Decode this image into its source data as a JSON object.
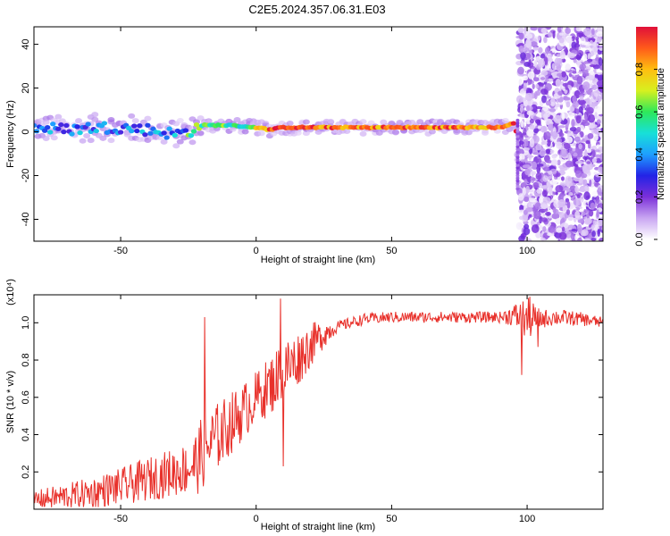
{
  "title": "C2E5.2024.357.06.31.E03",
  "colors": {
    "snr_line": "#e8302a",
    "colormap": [
      "#ffffff",
      "#c9a6f2",
      "#7b2fd9",
      "#2323e6",
      "#1e9fff",
      "#17e0d8",
      "#2ee85a",
      "#d7f01f",
      "#ffbe10",
      "#ff5a1a",
      "#e0103a"
    ]
  },
  "chart_data": [
    {
      "type": "heatmap",
      "xlabel": "Height of straight line (km)",
      "ylabel": "Frequency (Hz)",
      "xlim": [
        -82,
        128
      ],
      "ylim": [
        -50,
        48
      ],
      "xticks": [
        -50,
        0,
        50,
        100
      ],
      "yticks": [
        -40,
        -20,
        0,
        20,
        40
      ],
      "colorbar": {
        "label": "Normalized spectral amplitude",
        "range": [
          0.0,
          1.0
        ],
        "ticks": [
          "0.0",
          "0.2",
          "0.4",
          "0.6",
          "0.8"
        ],
        "tick_values": [
          0.0,
          0.2,
          0.4,
          0.6,
          0.8
        ]
      },
      "signal_line": {
        "x": [
          -82,
          -70,
          -60,
          -50,
          -40,
          -30,
          -25,
          -20,
          -10,
          0,
          5,
          10,
          20,
          40,
          60,
          80,
          90,
          95,
          96,
          97
        ],
        "y": [
          2,
          1,
          2,
          2,
          1,
          -1,
          0,
          3,
          3,
          2,
          1,
          2,
          2,
          2,
          2,
          2,
          2,
          4,
          0,
          -20
        ]
      },
      "noise_region_x": [
        97,
        128
      ]
    },
    {
      "type": "line",
      "xlabel": "Height of straight line (km)",
      "ylabel": "SNR (10 * v/v)",
      "y_exponent_label": "(x10⁴)",
      "xlim": [
        -82,
        128
      ],
      "ylim": [
        0,
        1.15
      ],
      "xticks": [
        -50,
        0,
        50,
        100
      ],
      "yticks": [
        0.2,
        0.4,
        0.6,
        0.8,
        1.0
      ],
      "ytick_labels": [
        "0.2",
        "0.4",
        "0.6",
        "0.8",
        "1.0"
      ],
      "trend": {
        "x": [
          -82,
          -70,
          -60,
          -50,
          -40,
          -30,
          -25,
          -22,
          -20,
          -15,
          -10,
          -5,
          0,
          5,
          10,
          15,
          20,
          25,
          30,
          40,
          50,
          60,
          70,
          80,
          90,
          95,
          100,
          105,
          110,
          120,
          128
        ],
        "y": [
          0.05,
          0.07,
          0.09,
          0.12,
          0.16,
          0.2,
          0.22,
          0.25,
          0.3,
          0.38,
          0.45,
          0.52,
          0.6,
          0.66,
          0.74,
          0.8,
          0.88,
          0.94,
          0.98,
          1.02,
          1.03,
          1.03,
          1.03,
          1.03,
          1.03,
          1.04,
          1.02,
          1.02,
          1.03,
          1.02,
          1.0
        ]
      },
      "noise_amplitude": {
        "x": [
          -82,
          -50,
          -25,
          -20,
          0,
          10,
          20,
          30,
          90,
          95,
          100,
          105,
          128
        ],
        "y": [
          0.05,
          0.1,
          0.14,
          0.2,
          0.14,
          0.18,
          0.12,
          0.03,
          0.03,
          0.06,
          0.12,
          0.05,
          0.03
        ]
      },
      "spikes": [
        {
          "x": -19,
          "y": 1.03
        },
        {
          "x": 9,
          "y": 1.13
        },
        {
          "x": 10,
          "y": 0.23
        },
        {
          "x": 98,
          "y": 0.72
        },
        {
          "x": 101,
          "y": 1.14
        },
        {
          "x": 104,
          "y": 0.87
        }
      ]
    }
  ]
}
